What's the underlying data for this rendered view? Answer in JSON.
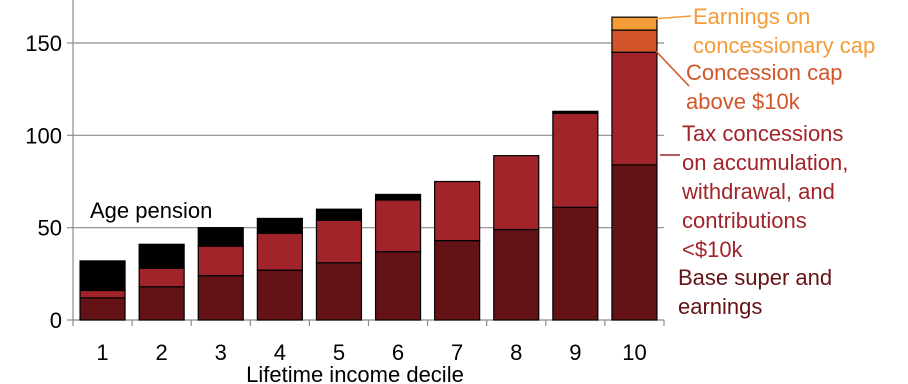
{
  "chart_data": {
    "type": "bar",
    "stacked": true,
    "categories": [
      "1",
      "2",
      "3",
      "4",
      "5",
      "6",
      "7",
      "8",
      "9",
      "10"
    ],
    "xlabel": "Lifetime income decile",
    "ylabel": "",
    "ylim": [
      0,
      165
    ],
    "yticks": [
      "0",
      "50",
      "100",
      "150"
    ],
    "grid": true,
    "series": [
      {
        "name": "Base super and earnings",
        "color": "#631316",
        "values": [
          12,
          18,
          24,
          27,
          31,
          37,
          43,
          49,
          61,
          84
        ]
      },
      {
        "name": "Tax concessions on accumulation, withdrawal, and contributions <$10k",
        "color": "#a1242a",
        "values": [
          4,
          10,
          16,
          20,
          23,
          28,
          32,
          40,
          51,
          61
        ]
      },
      {
        "name": "Concession cap above $10k",
        "color": "#d2552a",
        "values": [
          0,
          0,
          0,
          0,
          0,
          0,
          0,
          0,
          0,
          12
        ]
      },
      {
        "name": "Earnings on concessionary cap",
        "color": "#f39c38",
        "values": [
          0,
          0,
          0,
          0,
          0,
          0,
          0,
          0,
          0,
          7
        ]
      },
      {
        "name": "Age pension",
        "color": "#000000",
        "values": [
          16,
          13,
          10,
          8,
          6,
          3,
          0,
          0,
          1,
          0
        ]
      }
    ],
    "annotations": [
      {
        "lines": [
          "Earnings on",
          "concessionary cap"
        ],
        "color": "#f39c38"
      },
      {
        "lines": [
          "Concession cap",
          "above $10k"
        ],
        "color": "#d2552a"
      },
      {
        "lines": [
          "Tax concessions",
          "on accumulation,",
          "withdrawal, and",
          "contributions",
          "<$10k"
        ],
        "color": "#a1242a"
      },
      {
        "lines": [
          "Base super and",
          "earnings"
        ],
        "color": "#631316"
      },
      {
        "lines": [
          "Age pension"
        ],
        "color": "#000000"
      }
    ]
  }
}
